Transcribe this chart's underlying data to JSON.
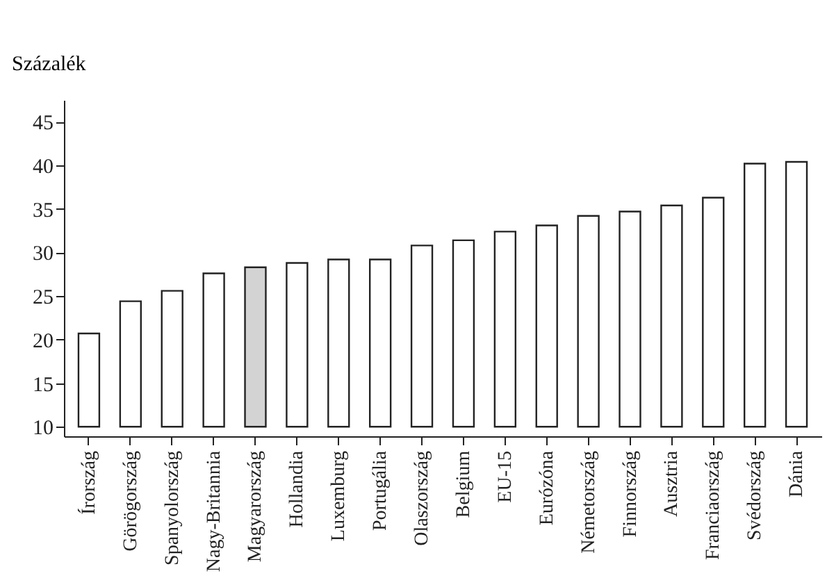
{
  "chart_data": {
    "type": "bar",
    "ylabel": "Százalék",
    "categories": [
      "Írország",
      "Görögország",
      "Spanyolország",
      "Nagy-Britannia",
      "Magyarország",
      "Hollandia",
      "Luxemburg",
      "Portugália",
      "Olaszország",
      "Belgium",
      "EU-15",
      "Eurózóna",
      "Németország",
      "Finnország",
      "Ausztria",
      "Franciaország",
      "Svédország",
      "Dánia"
    ],
    "base": [
      10,
      10,
      10,
      10,
      10,
      10,
      10,
      10,
      10,
      10,
      10,
      10,
      10,
      10,
      10,
      10,
      10,
      10
    ],
    "values": [
      10.7,
      14.4,
      15.6,
      17.6,
      18.3,
      18.8,
      19.2,
      19.2,
      20.8,
      21.4,
      22.4,
      23.1,
      24.2,
      24.7,
      25.4,
      26.3,
      30.2,
      30.4
    ],
    "colors": [
      "#ffffff",
      "#ffffff",
      "#ffffff",
      "#ffffff",
      "#d3d3d3",
      "#ffffff",
      "#ffffff",
      "#ffffff",
      "#ffffff",
      "#ffffff",
      "#ffffff",
      "#ffffff",
      "#ffffff",
      "#ffffff",
      "#ffffff",
      "#ffffff",
      "#ffffff",
      "#ffffff"
    ],
    "ylim": [
      8.9,
      47.5
    ],
    "yticks": [
      10,
      15,
      20,
      25,
      30,
      35,
      40,
      45
    ],
    "grid": false
  }
}
